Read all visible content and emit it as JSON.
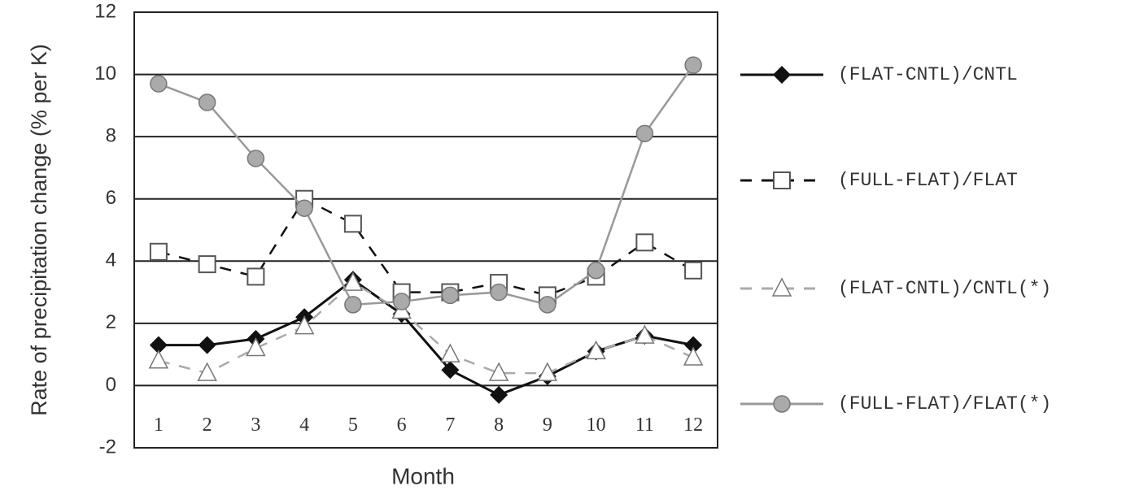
{
  "chart_data": {
    "type": "line",
    "x_label": "Month",
    "y_label": "Rate of precipitation change (% per K)",
    "categories": [
      "1",
      "2",
      "3",
      "4",
      "5",
      "6",
      "7",
      "8",
      "9",
      "10",
      "11",
      "12"
    ],
    "ylim": [
      -2,
      12
    ],
    "yticks": [
      -2,
      0,
      2,
      4,
      6,
      8,
      10,
      12
    ],
    "grid": true,
    "legend": "right",
    "series": [
      {
        "name": "(FLAT-CNTL)/CNTL",
        "color": "#111111",
        "marker": "diamond",
        "dash": false,
        "values": [
          1.3,
          1.3,
          1.5,
          2.2,
          3.4,
          2.3,
          0.5,
          -0.3,
          0.3,
          1.1,
          1.6,
          1.3
        ]
      },
      {
        "name": "(FULL-FLAT)/FLAT",
        "color": "#111111",
        "marker": "square",
        "dash": true,
        "values": [
          4.3,
          3.9,
          3.5,
          6.0,
          5.2,
          3.0,
          3.0,
          3.3,
          2.9,
          3.5,
          4.6,
          3.7
        ]
      },
      {
        "name": "(FLAT-CNTL)/CNTL(*)",
        "color": "#aaaaaa",
        "marker": "triangle",
        "dash": true,
        "values": [
          0.8,
          0.4,
          1.2,
          1.9,
          3.3,
          2.4,
          1.0,
          0.4,
          0.4,
          1.1,
          1.6,
          0.9
        ]
      },
      {
        "name": "(FULL-FLAT)/FLAT(*)",
        "color": "#999999",
        "marker": "circle",
        "dash": false,
        "values": [
          9.7,
          9.1,
          7.3,
          5.7,
          2.6,
          2.7,
          2.9,
          3.0,
          2.6,
          3.7,
          8.1,
          10.3
        ]
      }
    ]
  }
}
